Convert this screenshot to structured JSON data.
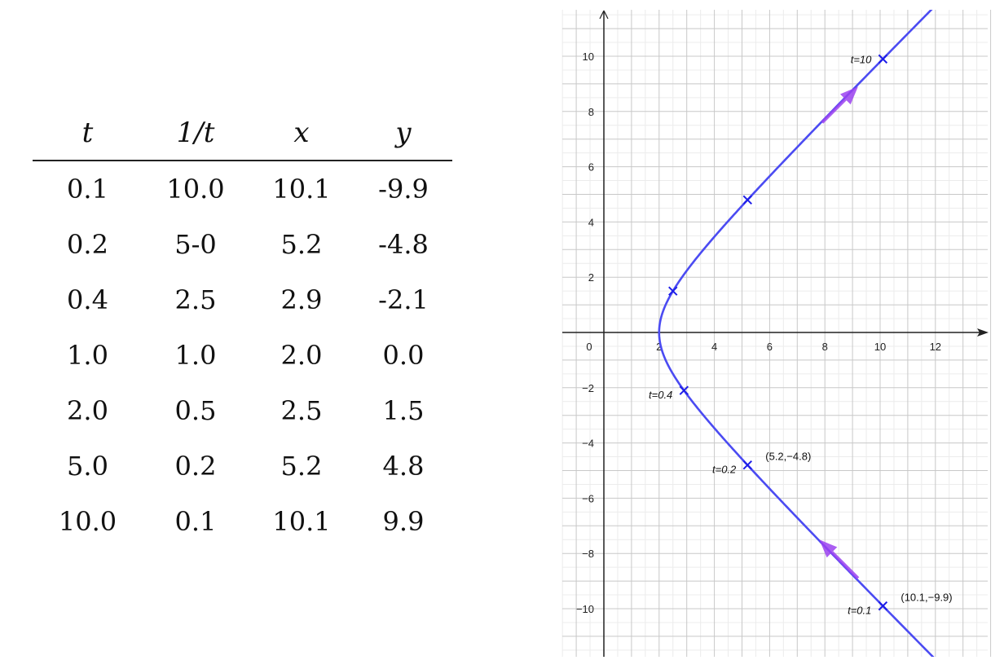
{
  "table": {
    "headers": [
      "t",
      "1/t",
      "x",
      "y"
    ],
    "rows": [
      [
        "0.1",
        "10.0",
        "10.1",
        "-9.9"
      ],
      [
        "0.2",
        "5-0",
        "5.2",
        "-4.8"
      ],
      [
        "0.4",
        "2.5",
        "2.9",
        "-2.1"
      ],
      [
        "1.0",
        "1.0",
        "2.0",
        "0.0"
      ],
      [
        "2.0",
        "0.5",
        "2.5",
        "1.5"
      ],
      [
        "5.0",
        "0.2",
        "5.2",
        "4.8"
      ],
      [
        "10.0",
        "0.1",
        "10.1",
        "9.9"
      ]
    ]
  },
  "chart_data": {
    "type": "line",
    "curve": "x = t + 1/t, y = t - 1/t",
    "t_range": [
      0.08,
      12
    ],
    "xlim": [
      -1.5,
      14
    ],
    "ylim": [
      -11.8,
      11.6
    ],
    "x_ticks": [
      "0",
      "2",
      "4",
      "6",
      "8",
      "10",
      "12"
    ],
    "y_ticks": [
      "10",
      "8",
      "6",
      "4",
      "2",
      "-2",
      "-4",
      "-6",
      "-8",
      "-10"
    ],
    "grid": true,
    "series": [
      {
        "color": "#4b4bf2"
      }
    ],
    "points": [
      {
        "x": 10.1,
        "y": -9.9,
        "label": "t=0.1",
        "coord_label": "(10.1,−9.9)"
      },
      {
        "x": 5.2,
        "y": -4.8,
        "label": "t=0.2",
        "coord_label": "(5.2,−4.8)"
      },
      {
        "x": 2.9,
        "y": -2.1,
        "label": "t=0.4",
        "coord_label": ""
      },
      {
        "x": 2.5,
        "y": 1.5,
        "label": "",
        "coord_label": ""
      },
      {
        "x": 5.2,
        "y": 4.8,
        "label": "",
        "coord_label": ""
      },
      {
        "x": 10.1,
        "y": 9.9,
        "label": "t=10",
        "coord_label": ""
      }
    ],
    "direction_arrows": [
      {
        "from": [
          9.2,
          -8.9
        ],
        "to": [
          7.8,
          -7.5
        ]
      },
      {
        "from": [
          7.9,
          7.6
        ],
        "to": [
          9.2,
          8.9
        ]
      }
    ],
    "colors": {
      "curve": "#4b4bf2",
      "arrow": "#9b42f0",
      "marker": "#1d1de8",
      "grid_major": "#c8c8c8",
      "grid_minor": "#ececec",
      "axis": "#222222"
    }
  }
}
